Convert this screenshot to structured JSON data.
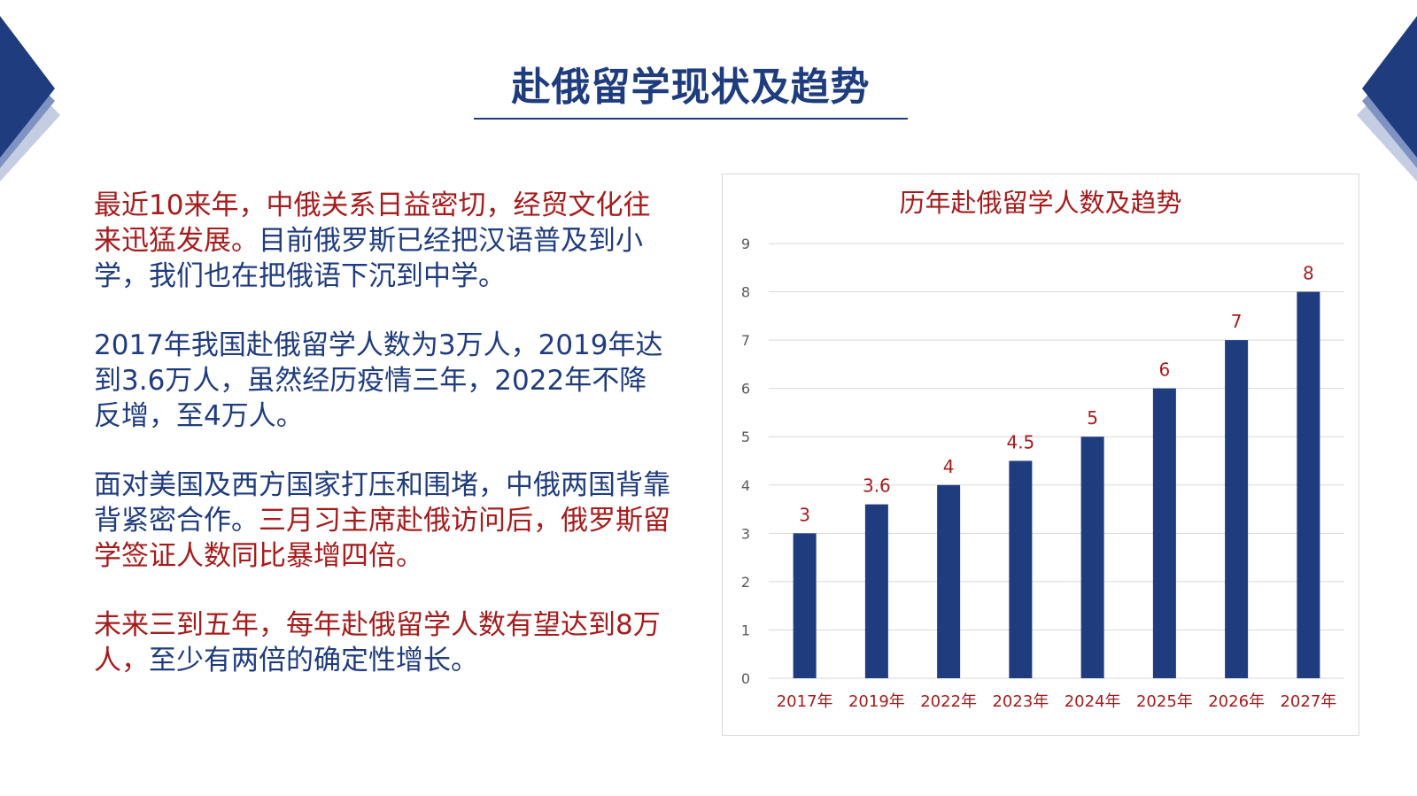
{
  "slide": {
    "title": "赴俄留学现状及趋势",
    "colors": {
      "navy": "#1f3c7f",
      "red": "#a61c1c",
      "bar": "#1f3c7f",
      "grid": "#d9d9d9"
    }
  },
  "paragraphs": [
    {
      "spans": [
        {
          "text": "最近10来年，中俄关系日益密切，经贸文化往来迅猛发展。",
          "color": "red"
        },
        {
          "text": "目前俄罗斯已经把汉语普及到小学，我们也在把俄语下沉到中学。",
          "color": "navy"
        }
      ]
    },
    {
      "spans": [
        {
          "text": "2017年我国赴俄留学人数为3万人，2019年达到3.6万人，虽然经历疫情三年，2022年不降反增，至4万人。",
          "color": "navy"
        }
      ]
    },
    {
      "spans": [
        {
          "text": "面对美国及西方国家打压和围堵，中俄两国背靠背紧密合作。",
          "color": "navy"
        },
        {
          "text": "三月习主席赴俄访问后，俄罗斯留学签证人数同比暴增四倍。",
          "color": "red"
        }
      ]
    },
    {
      "spans": [
        {
          "text": "未来三到五年，每年赴俄留学人数有望达到8万人，",
          "color": "red"
        },
        {
          "text": "至少有两倍的确定性增长。",
          "color": "navy"
        }
      ]
    }
  ],
  "chart_data": {
    "type": "bar",
    "title": "历年赴俄留学人数及趋势",
    "categories": [
      "2017年",
      "2019年",
      "2022年",
      "2023年",
      "2024年",
      "2025年",
      "2026年",
      "2027年"
    ],
    "values": [
      3,
      3.6,
      4,
      4.5,
      5,
      6,
      7,
      8
    ],
    "data_labels": [
      "3",
      "3.6",
      "4",
      "4.5",
      "5",
      "6",
      "7",
      "8"
    ],
    "y_ticks": [
      "0",
      "1",
      "2",
      "3",
      "4",
      "5",
      "6",
      "7",
      "8",
      "9"
    ],
    "ylim": [
      0,
      9
    ],
    "grid": true,
    "legend": false
  }
}
